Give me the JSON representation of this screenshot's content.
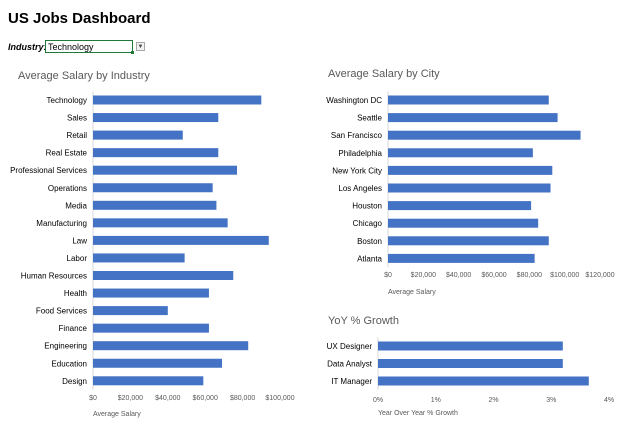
{
  "dashboard": {
    "title": "US Jobs Dashboard",
    "filter_label": "Industry:",
    "filter_value": "Technology"
  },
  "colors": {
    "bar": "#4472c4",
    "axis": "#d9d9d9"
  },
  "chart_data": [
    {
      "type": "bar",
      "orientation": "horizontal",
      "title": "Average Salary by Industry",
      "categories": [
        "Technology",
        "Sales",
        "Retail",
        "Real Estate",
        "Professional Services",
        "Operations",
        "Media",
        "Manufacturing",
        "Law",
        "Labor",
        "Human Resources",
        "Health",
        "Food Services",
        "Finance",
        "Engineering",
        "Education",
        "Design"
      ],
      "values": [
        90000,
        67000,
        48000,
        67000,
        77000,
        64000,
        66000,
        72000,
        94000,
        49000,
        75000,
        62000,
        40000,
        62000,
        83000,
        69000,
        59000
      ],
      "xlim": [
        0,
        100000
      ],
      "ticks": [
        "$0",
        "$20,000",
        "$40,000",
        "$60,000",
        "$80,000",
        "$100,000"
      ],
      "xlabel": "Average Salary"
    },
    {
      "type": "bar",
      "orientation": "horizontal",
      "title": "Average Salary by City",
      "categories": [
        "Washington DC",
        "Seattle",
        "San Francisco",
        "Philadelphia",
        "New York City",
        "Los Angeles",
        "Houston",
        "Chicago",
        "Boston",
        "Atlanta"
      ],
      "values": [
        91000,
        96000,
        109000,
        82000,
        93000,
        92000,
        81000,
        85000,
        91000,
        83000
      ],
      "xlim": [
        0,
        120000
      ],
      "ticks": [
        "$0",
        "$20,000",
        "$40,000",
        "$60,000",
        "$80,000",
        "$100,000",
        "$120,000"
      ],
      "xlabel": "Average Salary"
    },
    {
      "type": "bar",
      "orientation": "horizontal",
      "title": "YoY % Growth",
      "categories": [
        "UX Designer",
        "Data Analyst",
        "IT Manager"
      ],
      "values": [
        3.2,
        3.2,
        3.65
      ],
      "xlim": [
        0,
        4
      ],
      "ticks": [
        "0%",
        "1%",
        "2%",
        "3%",
        "4%"
      ],
      "xlabel": "Year Over Year % Growth"
    }
  ]
}
